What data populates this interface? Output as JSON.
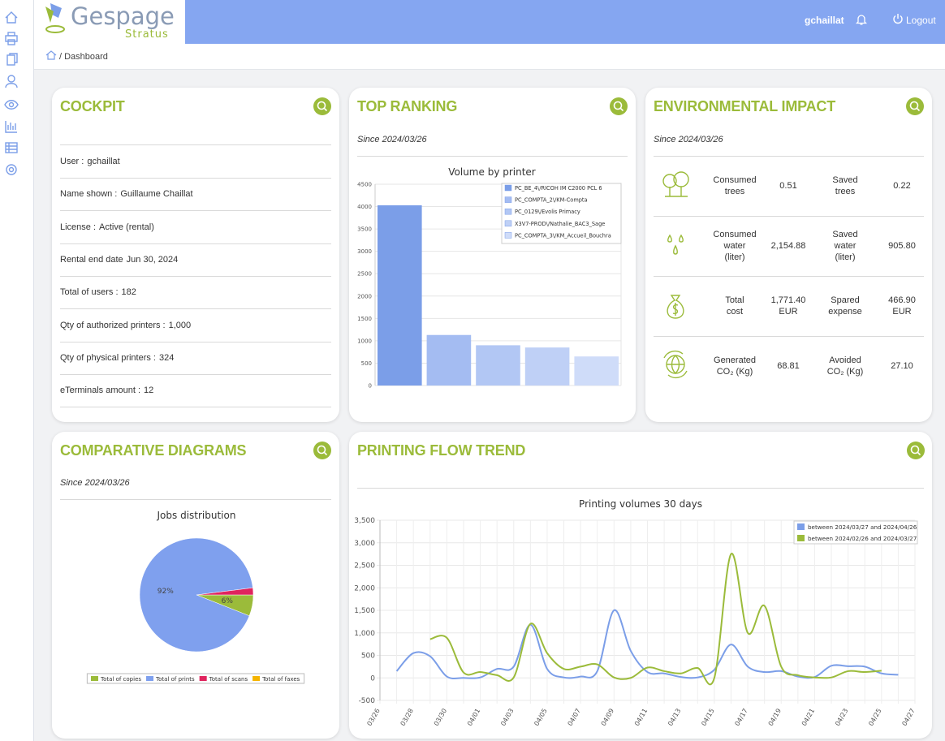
{
  "header": {
    "logo_name": "Gespage",
    "logo_sub": "Stratus",
    "user": "gchaillat",
    "logout": "Logout"
  },
  "breadcrumb": "/ Dashboard",
  "cockpit": {
    "title": "COCKPIT",
    "items": [
      {
        "label": "User :",
        "value": "gchaillat"
      },
      {
        "label": "Name shown :",
        "value": "Guillaume Chaillat"
      },
      {
        "label": "License :",
        "value": "Active (rental)"
      },
      {
        "label": "Rental end date",
        "value": "Jun 30, 2024"
      },
      {
        "label": "Total of users :",
        "value": "182"
      },
      {
        "label": "Qty of authorized printers :",
        "value": "1,000"
      },
      {
        "label": "Qty of physical printers :",
        "value": "324"
      },
      {
        "label": "eTerminals amount :",
        "value": "12"
      }
    ]
  },
  "top_ranking": {
    "title": "TOP RANKING",
    "since": "Since 2024/03/26"
  },
  "environmental": {
    "title": "ENVIRONMENTAL IMPACT",
    "since": "Since 2024/03/26",
    "rows": [
      {
        "left_label": "Consumed\ntrees",
        "left_value": "0.51",
        "right_label": "Saved\ntrees",
        "right_value": "0.22"
      },
      {
        "left_label": "Consumed\nwater\n(liter)",
        "left_value": "2,154.88",
        "right_label": "Saved\nwater\n(liter)",
        "right_value": "905.80"
      },
      {
        "left_label": "Total\ncost",
        "left_value": "1,771.40\nEUR",
        "right_label": "Spared\nexpense",
        "right_value": "466.90\nEUR"
      },
      {
        "left_label": "Generated\nCO₂ (Kg)",
        "left_value": "68.81",
        "right_label": "Avoided\nCO₂ (Kg)",
        "right_value": "27.10"
      }
    ]
  },
  "comparative": {
    "title": "COMPARATIVE DIAGRAMS",
    "since": "Since 2024/03/26"
  },
  "trend": {
    "title": "PRINTING FLOW TREND"
  },
  "chart_data": [
    {
      "type": "bar",
      "title": "Volume by printer",
      "categories": [
        "PC_BE_4\\/RICOH IM C2000 PCL 6",
        "PC_COMPTA_2\\/KM-Compta",
        "PC_0129\\/Evolis Primacy",
        "X3V7-PROD\\/Nathalie_BAC3_Sage",
        "PC_COMPTA_3\\/KM_Accueil_Bouchra"
      ],
      "values": [
        4030,
        1130,
        900,
        850,
        650
      ],
      "colors": [
        "#7b9ee8",
        "#a4bcf2",
        "#b2c7f4",
        "#bfd0f6",
        "#cfdcf9"
      ],
      "ylim": [
        0,
        4500
      ],
      "yticks": [
        0,
        500,
        1000,
        1500,
        2000,
        2500,
        3000,
        3500,
        4000,
        4500
      ],
      "grid": true
    },
    {
      "type": "pie",
      "title": "Jobs distribution",
      "categories": [
        "Total of copies",
        "Total of prints",
        "Total of scans",
        "Total of faxes"
      ],
      "values": [
        6,
        92,
        2,
        0
      ],
      "value_labels": [
        "6%",
        "92%",
        null,
        null
      ],
      "colors": [
        "#9bbb3a",
        "#7fa0ee",
        "#e0245e",
        "#f5b400"
      ]
    },
    {
      "type": "line",
      "title": "Printing volumes 30 days",
      "categories": [
        "03/26",
        null,
        "03/28",
        null,
        "03/30",
        null,
        "04/01",
        null,
        "04/03",
        null,
        "04/05",
        null,
        "04/07",
        null,
        "04/09",
        null,
        "04/11",
        null,
        "04/13",
        null,
        "04/15",
        null,
        "04/17",
        null,
        "04/19",
        null,
        "04/21",
        null,
        "04/23",
        null,
        "04/25",
        null,
        "04/27"
      ],
      "series": [
        {
          "name": "between 2024/03/27 and 2024/04/26",
          "color": "#7b9ee8",
          "values": [
            null,
            150,
            550,
            480,
            30,
            0,
            10,
            200,
            250,
            1180,
            200,
            10,
            30,
            150,
            1500,
            600,
            130,
            100,
            20,
            10,
            180,
            740,
            250,
            130,
            150,
            30,
            20,
            270,
            260,
            250,
            100,
            70,
            null
          ]
        },
        {
          "name": "between 2024/02/26 and 2024/03/27",
          "color": "#9bbb3a",
          "values": [
            null,
            null,
            null,
            860,
            890,
            120,
            130,
            60,
            10,
            1200,
            550,
            200,
            250,
            300,
            10,
            0,
            230,
            150,
            100,
            220,
            0,
            2750,
            1000,
            1600,
            250,
            60,
            10,
            10,
            150,
            130,
            160,
            null,
            null
          ]
        }
      ],
      "ylim": [
        -500,
        3500
      ],
      "yticks": [
        -500,
        0,
        500,
        {
          "value": 1000,
          "label": "1,000"
        },
        {
          "value": 1500,
          "label": "1,500"
        },
        {
          "value": 2000,
          "label": "2,000"
        },
        {
          "value": 2500,
          "label": "2,500"
        },
        {
          "value": 3000,
          "label": "3,000"
        },
        {
          "value": 3500,
          "label": "3,500"
        }
      ],
      "grid": true,
      "legend": "top-right"
    }
  ]
}
